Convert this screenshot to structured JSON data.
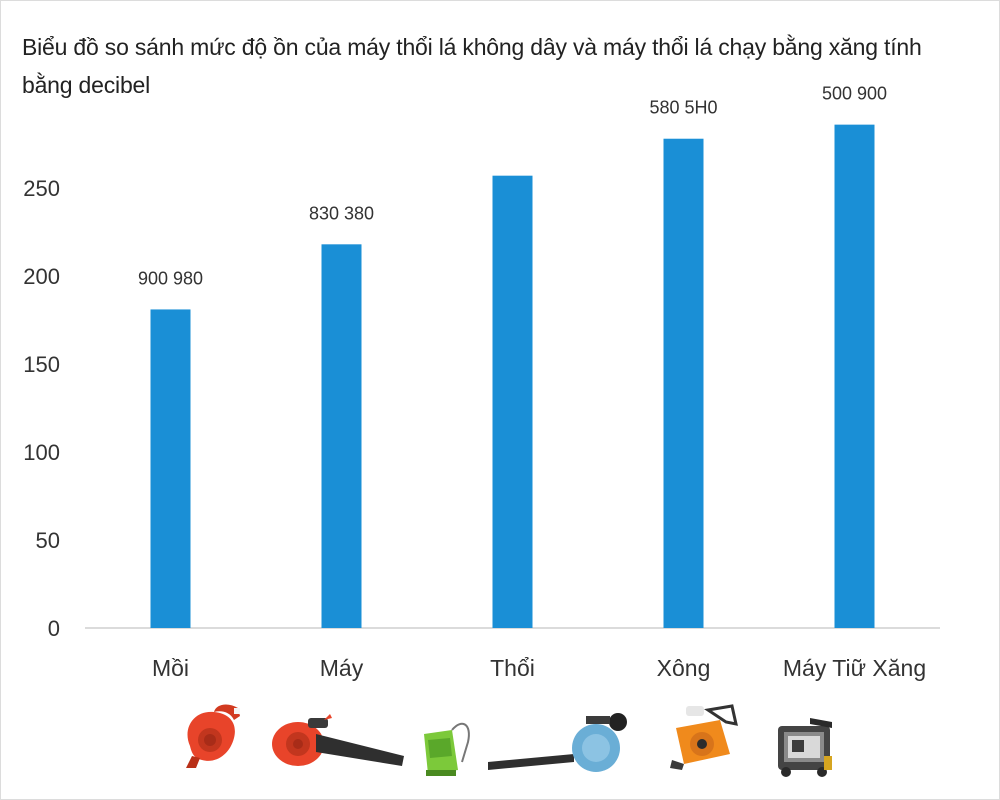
{
  "chart_data": {
    "type": "bar",
    "title": "Biểu đồ so sánh mức độ ồn của máy thổi lá không dây và máy thổi lá chạy bằng xăng tính bằng decibel",
    "categories": [
      "Mồi",
      "Máy",
      "Thổi",
      "Xông",
      "Máy Tiữ Xăng"
    ],
    "values": [
      181,
      218,
      257,
      278,
      286
    ],
    "data_labels": [
      "900 980",
      "830 380",
      "",
      "580 5H0",
      "500 900"
    ],
    "ylim": [
      0,
      300
    ],
    "yticks": [
      0,
      50,
      100,
      150,
      200,
      250
    ],
    "xlabel": "",
    "ylabel": "",
    "grid": false,
    "bar_color": "#1a8fd6"
  },
  "devices": [
    {
      "icon": "red-handheld-blower-icon",
      "color": "#e8442a"
    },
    {
      "icon": "red-tube-blower-icon",
      "color": "#e8442a"
    },
    {
      "icon": "green-backpack-blower-icon",
      "color": "#7cc93a"
    },
    {
      "icon": "blue-long-tube-blower-icon",
      "color": "#6aaed6"
    },
    {
      "icon": "orange-gas-blower-icon",
      "color": "#f08a1c"
    },
    {
      "icon": "black-gas-engine-blower-icon",
      "color": "#333333"
    }
  ]
}
